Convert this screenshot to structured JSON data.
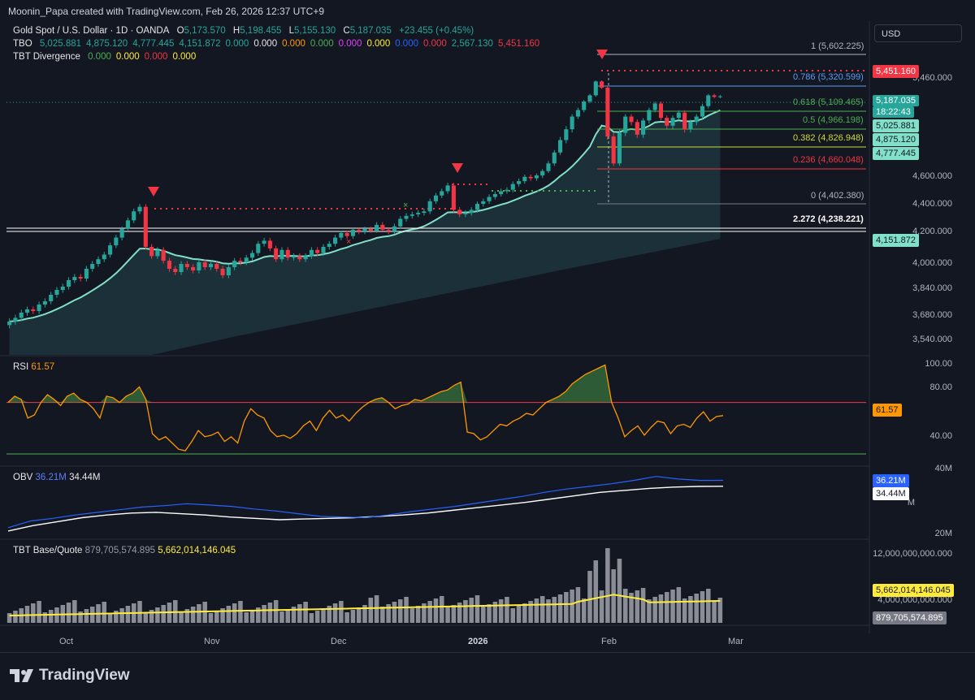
{
  "header": {
    "text": "Moonin_Papa created with TradingView.com, Feb 26, 2026 12:37 UTC+9"
  },
  "symbol": {
    "name": "Gold Spot / U.S. Dollar · 1D · OANDA",
    "o_label": "O",
    "o": "5,173.570",
    "h_label": "H",
    "h": "5,198.455",
    "l_label": "L",
    "l": "5,155.130",
    "c_label": "C",
    "c": "5,187.035",
    "change": "+23.455 (+0.45%)"
  },
  "tbo": {
    "label": "TBO",
    "values": [
      "5,025.881",
      "4,875.120",
      "4,777.445",
      "4,151.872",
      "0.000",
      "0.000",
      "0.000",
      "0.000",
      "0.000",
      "0.000",
      "0.000",
      "0.000",
      "2,567.130",
      "5,451.160"
    ],
    "colors": [
      "#26a69a",
      "#26a69a",
      "#26a69a",
      "#26a69a",
      "#26a69a",
      "#e6e6e6",
      "#ff9800",
      "#4caf50",
      "#e040fb",
      "#ffeb3b",
      "#2962ff",
      "#f23645",
      "#26a69a",
      "#f23645"
    ]
  },
  "tbt_div": {
    "label": "TBT Divergence",
    "values": [
      "0.000",
      "0.000",
      "0.000",
      "0.000"
    ],
    "colors": [
      "#4caf50",
      "#ffeb3b",
      "#f23645",
      "#ffeb3b"
    ]
  },
  "currency_button": "USD",
  "price_axis": [
    "5,460.000",
    "4,600.000",
    "4,400.000",
    "4,200.000",
    "4,000.000",
    "3,840.000",
    "3,680.000",
    "3,540.000"
  ],
  "price_tags": [
    {
      "text": "5,451.160",
      "bg": "#f23645",
      "fg": "#ffffff"
    },
    {
      "text": "5,187.035",
      "bg": "#26a69a",
      "fg": "#ffffff"
    },
    {
      "text": "18:22:43",
      "bg": "#26a69a",
      "fg": "#ffffff"
    },
    {
      "text": "5,025.881",
      "bg": "#81e0c8",
      "fg": "#131722"
    },
    {
      "text": "4,875.120",
      "bg": "#81e0c8",
      "fg": "#131722"
    },
    {
      "text": "4,777.445",
      "bg": "#81e0c8",
      "fg": "#131722"
    },
    {
      "text": "4,151.872",
      "bg": "#81e0c8",
      "fg": "#131722"
    }
  ],
  "fib_levels": [
    {
      "label": "1 (5,602.225)",
      "color": "#b2b5be"
    },
    {
      "label": "0.786 (5,320.599)",
      "color": "#5b9cf6"
    },
    {
      "label": "0.618 (5,109.465)",
      "color": "#4caf50"
    },
    {
      "label": "0.5 (4,966.198)",
      "color": "#4caf50"
    },
    {
      "label": "0.382 (4,826.948)",
      "color": "#cddc39"
    },
    {
      "label": "0.236 (4,660.048)",
      "color": "#f23645"
    },
    {
      "label": "0 (4,402.380)",
      "color": "#b2b5be"
    },
    {
      "label": "2.272 (4,238.221)",
      "color": "#ffffff"
    }
  ],
  "rsi": {
    "label": "RSI",
    "value": "61.57",
    "axis": [
      "100.00",
      "80.00",
      "40.00"
    ]
  },
  "obv": {
    "label": "OBV",
    "value": "36.21M",
    "value2": "34.44M",
    "axis": [
      "40M",
      "20M"
    ],
    "tag2": "M",
    "axis_partial": "M"
  },
  "tbt_bq": {
    "label": "TBT Base/Quote",
    "value": "879,705,574.895",
    "value2": "5,662,014,146.045",
    "axis": [
      "12,000,000,000.000",
      "4,000,000,000.000"
    ]
  },
  "time_axis": [
    "Oct",
    "Nov",
    "Dec",
    "2026",
    "Feb",
    "Mar"
  ],
  "brand": "TradingView",
  "chart_data": {
    "type": "candlestick",
    "title": "Gold Spot / U.S. Dollar · 1D · OANDA",
    "x_range": [
      "Sep 2025",
      "Feb 26 2026"
    ],
    "ylim": [
      3460,
      5660
    ],
    "last_close": 5187.035,
    "ema_values": {
      "fast": 5025.881,
      "mid": 4875.12,
      "slow": 4777.445,
      "slowest": 4151.872
    },
    "closes": [
      3640,
      3660,
      3690,
      3710,
      3700,
      3740,
      3760,
      3800,
      3830,
      3850,
      3890,
      3910,
      3900,
      3960,
      3990,
      4020,
      4050,
      4110,
      4160,
      4230,
      4290,
      4350,
      4380,
      4100,
      4040,
      4080,
      4010,
      3960,
      3940,
      3990,
      3970,
      3950,
      4000,
      3970,
      3990,
      3960,
      3920,
      3970,
      4010,
      4000,
      4030,
      4060,
      4120,
      4140,
      4090,
      4020,
      4080,
      4030,
      4040,
      4020,
      4040,
      4080,
      4060,
      4100,
      4120,
      4160,
      4190,
      4170,
      4220,
      4200,
      4230,
      4210,
      4260,
      4220,
      4200,
      4250,
      4300,
      4320,
      4330,
      4340,
      4350,
      4420,
      4460,
      4490,
      4530,
      4360,
      4330,
      4340,
      4360,
      4400,
      4420,
      4450,
      4470,
      4490,
      4500,
      4540,
      4560,
      4590,
      4580,
      4600,
      4640,
      4700,
      4780,
      4860,
      4920,
      5000,
      5050,
      5120,
      5200,
      5400,
      5300,
      4880,
      4700,
      4900,
      5000,
      4960,
      4890,
      4970,
      5050,
      5100,
      4990,
      4940,
      4990,
      5030,
      4920,
      4960,
      5000,
      5080,
      5200,
      5180,
      5187
    ],
    "rsi_values": [
      70,
      74,
      72,
      60,
      62,
      70,
      75,
      72,
      68,
      74,
      76,
      72,
      70,
      66,
      60,
      74,
      73,
      70,
      74,
      76,
      80,
      72,
      50,
      46,
      48,
      44,
      40,
      39,
      45,
      52,
      48,
      49,
      51,
      45,
      48,
      44,
      58,
      66,
      62,
      60,
      52,
      48,
      49,
      47,
      50,
      55,
      58,
      52,
      60,
      65,
      60,
      62,
      58,
      63,
      67,
      70,
      72,
      73,
      70,
      66,
      68,
      69,
      72,
      71,
      73,
      75,
      77,
      78,
      81,
      83,
      51,
      50,
      46,
      48,
      52,
      56,
      55,
      58,
      60,
      63,
      62,
      66,
      70,
      72,
      74,
      77,
      82,
      85,
      88,
      90,
      92,
      94,
      70,
      60,
      48,
      52,
      55,
      49,
      54,
      58,
      57,
      50,
      55,
      56,
      54,
      60,
      64,
      58,
      61,
      61.57
    ],
    "rsi_levels": [
      70,
      30
    ],
    "obv_values": [
      22,
      24,
      24.8,
      25.8,
      26.6,
      27.4,
      28.2,
      28.6,
      29.2,
      28.8,
      28.4,
      27.6,
      27,
      26.2,
      25.4,
      25.2,
      25,
      25.8,
      26.8,
      27.6,
      28.4,
      29.4,
      30.4,
      31.4,
      32.6,
      33.6,
      34.4,
      35.2,
      36.2,
      37.4,
      36.6,
      36.2,
      36.21
    ],
    "obv_signal": [
      21,
      22.6,
      23.8,
      25,
      25.8,
      26.4,
      26.6,
      26.2,
      25.8,
      25.2,
      24.8,
      24.4,
      24.6,
      24.8,
      25,
      25.4,
      25.8,
      26.4,
      27.2,
      28,
      28.8,
      29.6,
      30.6,
      31.6,
      32.6,
      33.2,
      33.8,
      34.2,
      34.4,
      34.44
    ],
    "tbt_volume_levels": [
      880000000.0,
      5662000000.0
    ],
    "series": [
      {
        "name": "RSI",
        "value": 61.57
      },
      {
        "name": "OBV",
        "value": "36.21M"
      },
      {
        "name": "TBT Base/Quote",
        "value": "879,705,574.895"
      }
    ]
  }
}
